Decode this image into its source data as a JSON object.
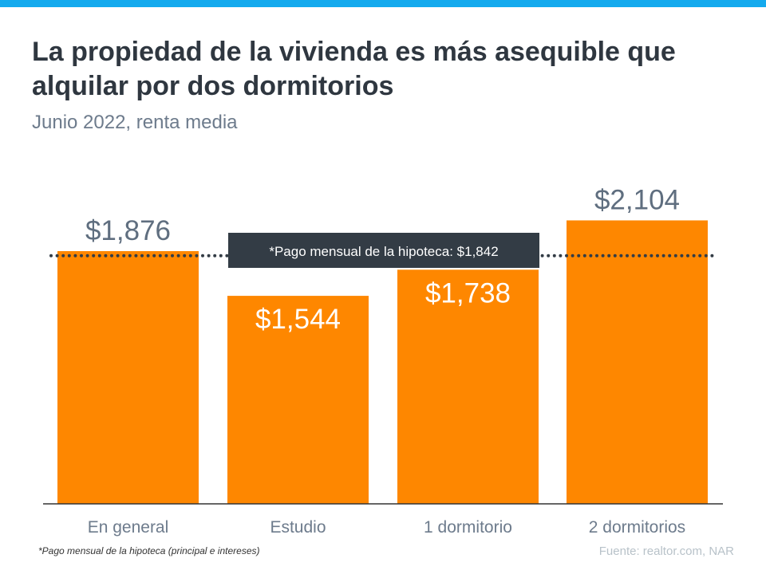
{
  "title": "La propiedad de la vivienda es más asequible que alquilar por dos dormitorios",
  "subtitle": "Junio 2022, renta media",
  "footnote": "*Pago mensual de la hipoteca (principal e intereses)",
  "source": "Fuente: realtor.com, NAR",
  "colors": {
    "bar": "#fe8700",
    "topbar": "#14aaee",
    "reference": "#333c45"
  },
  "chart_data": {
    "type": "bar",
    "categories": [
      "En general",
      "Estudio",
      "1 dormitorio",
      "2 dormitorios"
    ],
    "values": [
      1876,
      1544,
      1738,
      2104
    ],
    "data_labels": [
      "$1,876",
      "$1,544",
      "$1,738",
      "$2,104"
    ],
    "title": "La propiedad de la vivienda es más asequible que alquilar por dos dormitorios",
    "subtitle": "Junio 2022, renta media",
    "xlabel": "",
    "ylabel": "",
    "ylim": [
      0,
      3740
    ],
    "grid": false,
    "reference_line": {
      "value": 1842,
      "label": "*Pago mensual de la hipoteca: $1,842",
      "style": "dotted"
    }
  }
}
